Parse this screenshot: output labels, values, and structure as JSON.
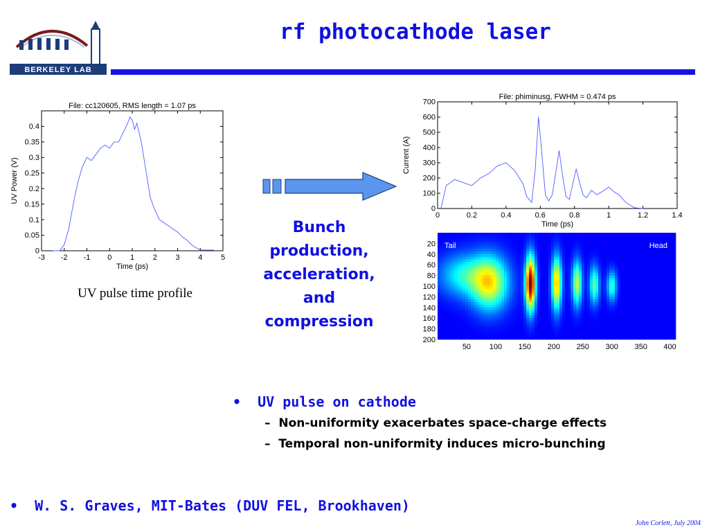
{
  "slide": {
    "title": "rf photocathode laser",
    "logo_text": "BERKELEY LAB",
    "bunch_text": [
      "Bunch",
      "production,",
      "acceleration,",
      "and",
      "compression"
    ],
    "uv_caption": "UV pulse time profile",
    "bullets": {
      "main": "UV pulse on cathode",
      "subs": [
        "Non-uniformity exacerbates space-charge effects",
        "Temporal non-uniformity induces micro-bunching"
      ],
      "bottom": "W. S. Graves, MIT-Bates (DUV FEL, Brookhaven)"
    },
    "credit": "John Corlett,  July 2004",
    "colors": {
      "accent": "#1414e6",
      "arrow": "#5a96ee"
    }
  },
  "chart_data": [
    {
      "type": "line",
      "title": "File: cc120605,  RMS length = 1.07 ps",
      "xlabel": "Time (ps)",
      "ylabel": "UV Power (V)",
      "xlim": [
        -3,
        5
      ],
      "ylim": [
        0,
        0.45
      ],
      "xticks": [
        -3,
        -2,
        -1,
        0,
        1,
        2,
        3,
        4,
        5
      ],
      "yticks": [
        "0",
        "0.05",
        "0.1",
        "0.15",
        "0.2",
        "0.25",
        "0.3",
        "0.35",
        "0.4"
      ],
      "x": [
        -2.5,
        -2.2,
        -2.0,
        -1.8,
        -1.6,
        -1.4,
        -1.2,
        -1.0,
        -0.8,
        -0.6,
        -0.4,
        -0.2,
        0.0,
        0.2,
        0.4,
        0.6,
        0.8,
        0.9,
        1.0,
        1.1,
        1.2,
        1.4,
        1.6,
        1.8,
        2.0,
        2.2,
        2.4,
        2.6,
        2.8,
        3.0,
        3.2,
        3.4,
        3.6,
        3.8,
        4.0,
        4.3,
        4.6
      ],
      "values": [
        0.0,
        0.0,
        0.02,
        0.07,
        0.15,
        0.22,
        0.27,
        0.3,
        0.29,
        0.31,
        0.33,
        0.34,
        0.33,
        0.35,
        0.35,
        0.38,
        0.41,
        0.43,
        0.42,
        0.39,
        0.41,
        0.35,
        0.26,
        0.17,
        0.13,
        0.1,
        0.09,
        0.08,
        0.07,
        0.06,
        0.045,
        0.035,
        0.02,
        0.01,
        0.003,
        0.002,
        0.002
      ],
      "grid": false
    },
    {
      "type": "line",
      "title": "File: phiminusg,  FWHM = 0.474 ps",
      "xlabel": "Time (ps)",
      "ylabel": "Current (A)",
      "xlim": [
        0,
        1.4
      ],
      "ylim": [
        0,
        700
      ],
      "xticks": [
        "0",
        "0.2",
        "0.4",
        "0.6",
        "0.8",
        "1",
        "1.2",
        "1.4"
      ],
      "yticks": [
        "0",
        "100",
        "200",
        "300",
        "400",
        "500",
        "600",
        "700"
      ],
      "x": [
        0.02,
        0.05,
        0.1,
        0.15,
        0.2,
        0.25,
        0.3,
        0.35,
        0.4,
        0.45,
        0.5,
        0.52,
        0.55,
        0.57,
        0.59,
        0.61,
        0.63,
        0.65,
        0.67,
        0.69,
        0.71,
        0.73,
        0.75,
        0.77,
        0.79,
        0.81,
        0.83,
        0.85,
        0.87,
        0.9,
        0.93,
        0.96,
        1.0,
        1.03,
        1.06,
        1.1,
        1.15,
        1.2
      ],
      "values": [
        0,
        150,
        190,
        170,
        150,
        200,
        230,
        280,
        300,
        250,
        160,
        80,
        40,
        250,
        600,
        350,
        90,
        50,
        90,
        230,
        380,
        220,
        80,
        60,
        160,
        260,
        170,
        90,
        70,
        120,
        90,
        110,
        140,
        110,
        90,
        40,
        5,
        0
      ],
      "grid": false
    },
    {
      "type": "heatmap",
      "xticks": [
        "50",
        "100",
        "150",
        "200",
        "250",
        "300",
        "350",
        "400"
      ],
      "yticks": [
        "20",
        "40",
        "60",
        "80",
        "100",
        "120",
        "140",
        "160",
        "180",
        "200"
      ],
      "xlim": [
        0,
        410
      ],
      "ylim": [
        0,
        200
      ],
      "labels": {
        "left": "Tail",
        "right": "Head"
      },
      "blobs": [
        {
          "x": 90,
          "y": 95,
          "sx": 22,
          "sy": 35,
          "amp": 0.55
        },
        {
          "x": 45,
          "y": 80,
          "sx": 30,
          "sy": 28,
          "amp": 0.3
        },
        {
          "x": 160,
          "y": 95,
          "sx": 6,
          "sy": 35,
          "amp": 1.0
        },
        {
          "x": 205,
          "y": 95,
          "sx": 6,
          "sy": 35,
          "amp": 0.65
        },
        {
          "x": 240,
          "y": 95,
          "sx": 6,
          "sy": 30,
          "amp": 0.5
        },
        {
          "x": 270,
          "y": 98,
          "sx": 6,
          "sy": 25,
          "amp": 0.4
        },
        {
          "x": 300,
          "y": 100,
          "sx": 6,
          "sy": 20,
          "amp": 0.35
        }
      ]
    }
  ]
}
